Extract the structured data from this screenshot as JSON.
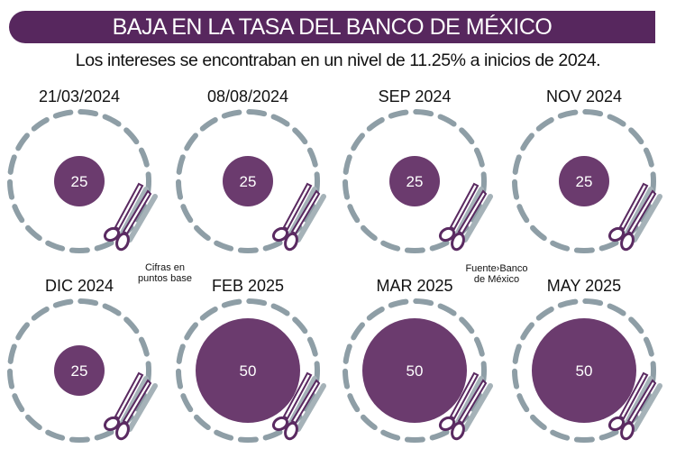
{
  "header": {
    "title": "BAJA EN LA TASA DEL BANCO DE MÉXICO",
    "subtitle": "Los intereses se encontraban en un nivel de 11.25% a inicios de 2024."
  },
  "notes": {
    "units": "Cifras en puntos base",
    "source": "Fuente›Banco de México"
  },
  "colors": {
    "title_bar": "#57275e",
    "cut_circle": "#6b3b6e",
    "dashed_ring": "#8e9ea6",
    "scissors": "#5a2a61"
  },
  "icons": {
    "cut": "scissors-icon"
  },
  "chart_data": {
    "type": "bubble",
    "title": "BAJA EN LA TASA DEL BANCO DE MÉXICO",
    "categories": [
      "21/03/2024",
      "08/08/2024",
      "SEP 2024",
      "NOV 2024",
      "DIC 2024",
      "FEB 2025",
      "MAR 2025",
      "MAY 2025"
    ],
    "values": [
      25,
      25,
      25,
      25,
      25,
      50,
      50,
      50
    ],
    "unit": "puntos base"
  }
}
